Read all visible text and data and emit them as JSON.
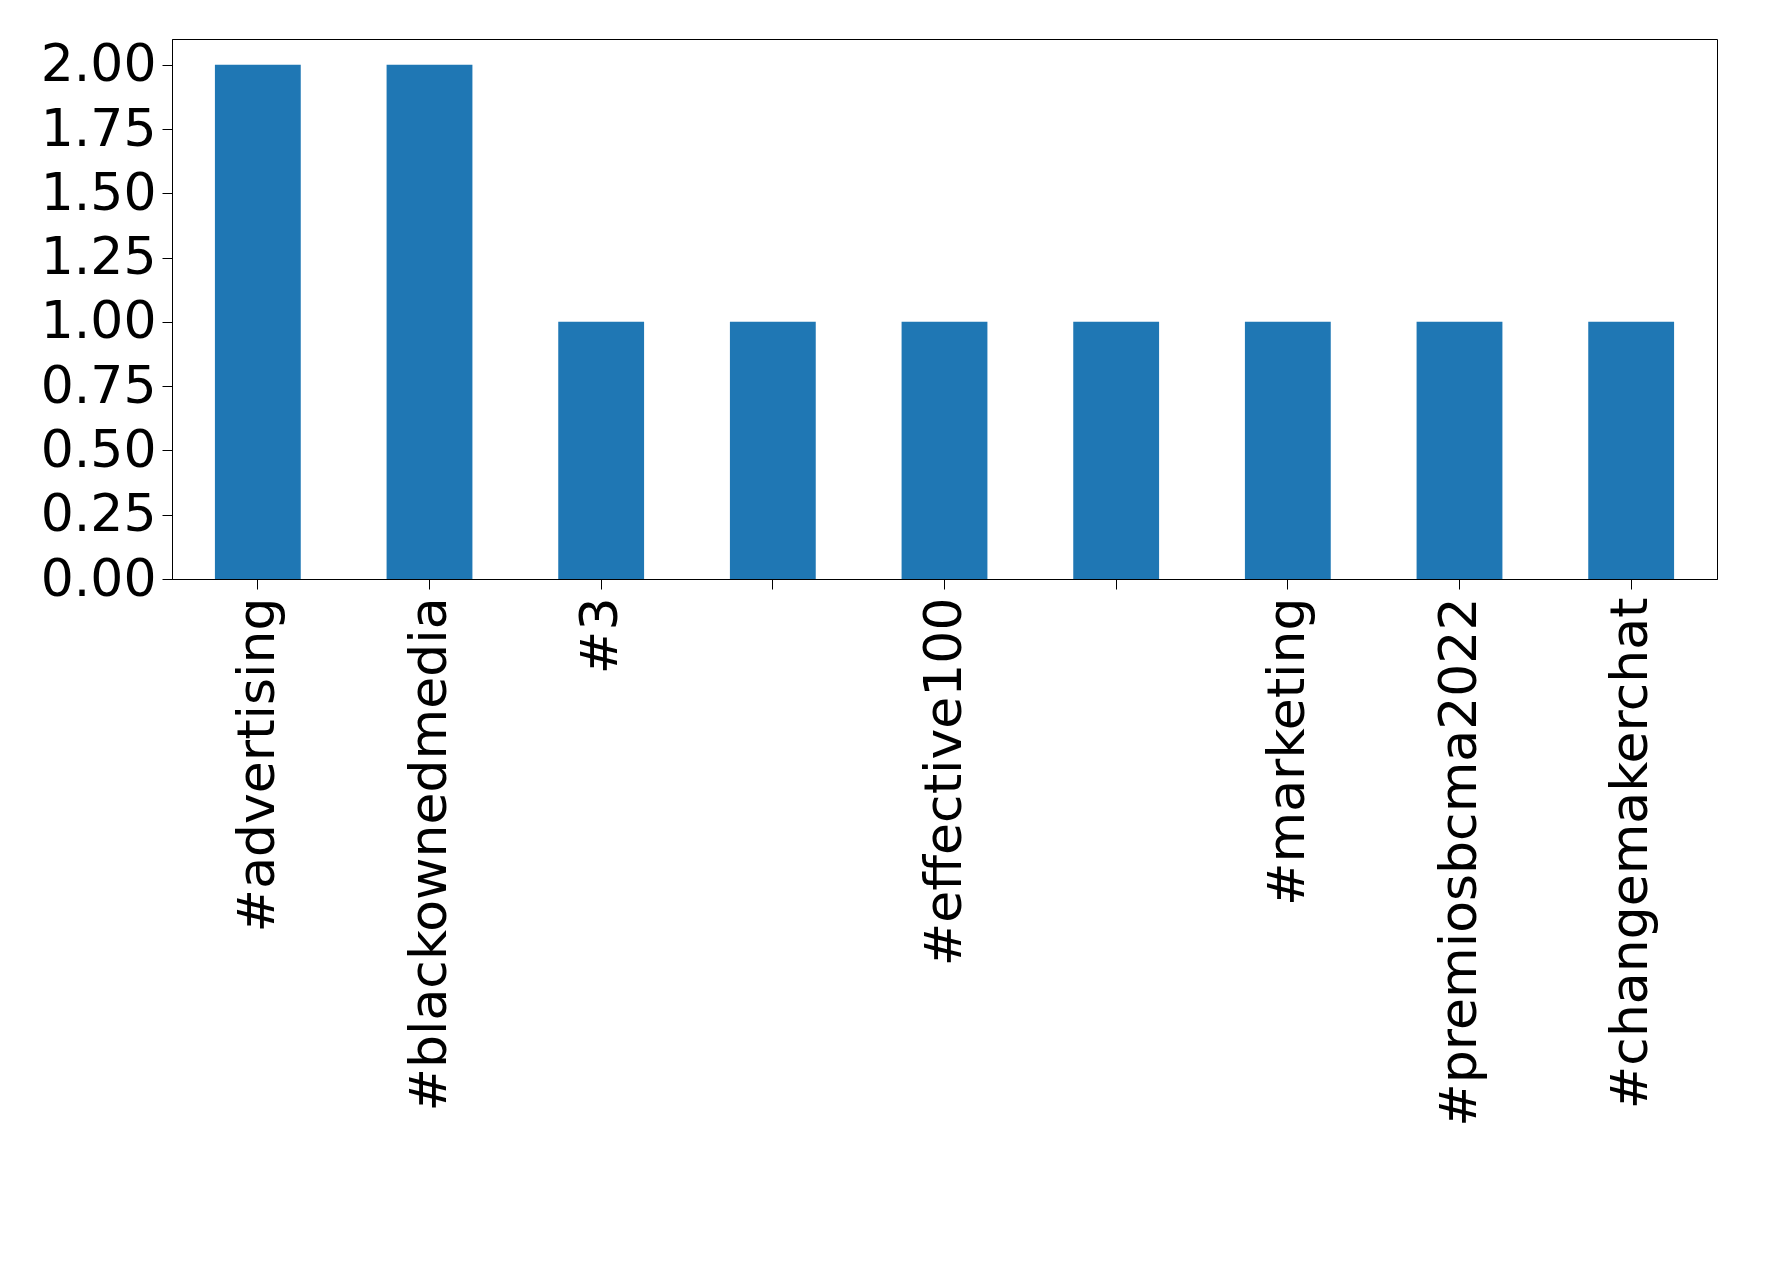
{
  "chart_data": {
    "type": "bar",
    "categories": [
      "#advertising",
      "#blackownedmedia",
      "#3",
      null,
      "#effective100",
      null,
      "#marketing",
      "#premiosbcma2022",
      "#changemakerchat"
    ],
    "values": [
      2,
      2,
      1,
      1,
      1,
      1,
      1,
      1,
      1
    ],
    "color": "#1f77b4",
    "ylim": [
      0,
      2.1
    ],
    "yticks": [
      {
        "value": 0,
        "label": "0.00"
      },
      {
        "value": 0.25,
        "label": "0.25"
      },
      {
        "value": 0.5,
        "label": "0.50"
      },
      {
        "value": 0.75,
        "label": "0.75"
      },
      {
        "value": 1,
        "label": "1.00"
      },
      {
        "value": 1.25,
        "label": "1.25"
      },
      {
        "value": 1.5,
        "label": "1.50"
      },
      {
        "value": 1.75,
        "label": "1.75"
      },
      {
        "value": 2,
        "label": "2.00"
      }
    ],
    "grid": false
  }
}
